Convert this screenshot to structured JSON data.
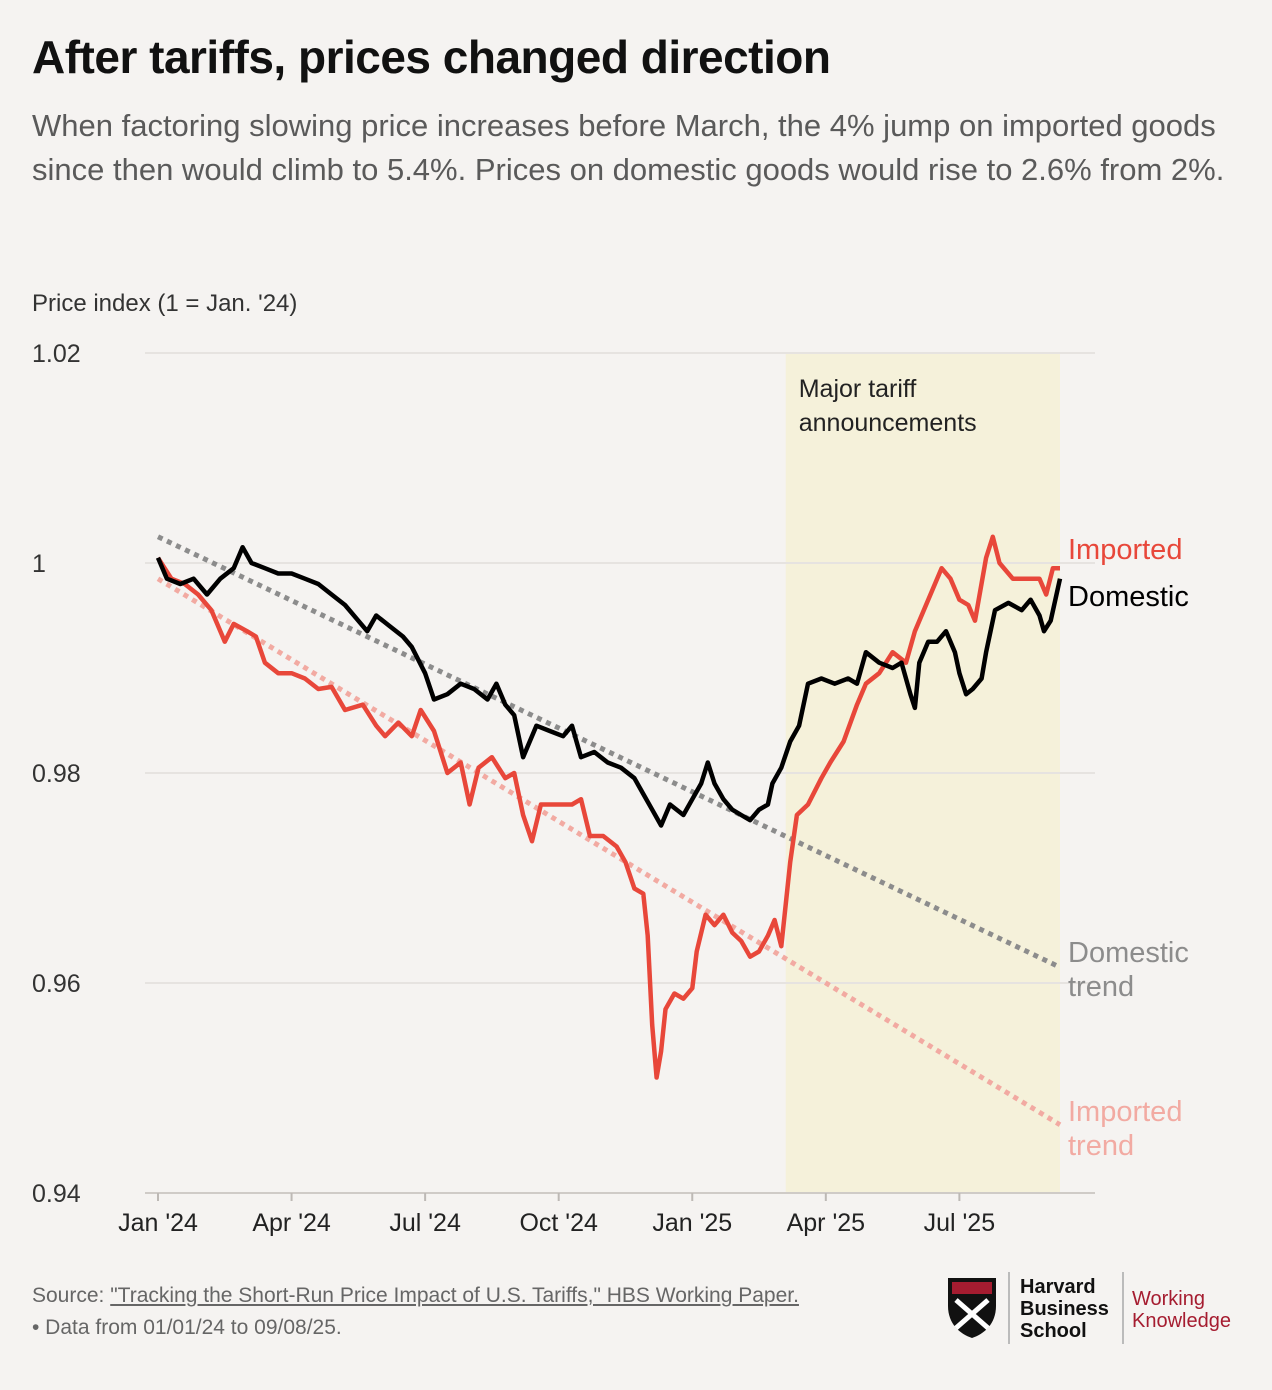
{
  "title": "After tariffs, prices changed direction",
  "subtitle": "When factoring slowing price increases before March, the 4% jump on imported goods since then would climb to 5.4%. Prices on domestic goods would rise to 2.6% from 2%.",
  "axis_caption": "Price index (1 = Jan. '24)",
  "footer": {
    "source_prefix": "Source: ",
    "source_link": "\"Tracking the Short-Run Price Impact of U.S. Tariffs,\" HBS Working Paper.",
    "note": "• Data from 01/01/24 to 09/08/25."
  },
  "logo": {
    "hbs_lines": [
      "Harvard",
      "Business",
      "School"
    ],
    "wk_lines": [
      "Working",
      "Knowledge"
    ]
  },
  "colors": {
    "imported": "#e8473a",
    "domestic": "#000000",
    "imported_trend": "#f2aaa2",
    "domestic_trend": "#8c8c8c",
    "shade": "#f5f1da",
    "background": "#f5f3f1"
  },
  "chart_data": {
    "type": "line",
    "ylim": [
      0.94,
      1.02
    ],
    "yticks": [
      1.02,
      1,
      0.98,
      0.96,
      0.94
    ],
    "ytick_labels": [
      "1.02",
      "1",
      "0.98",
      "0.96",
      "0.94"
    ],
    "xlim": [
      0,
      20.26
    ],
    "xticks": [
      {
        "x": 0,
        "label": "Jan '24"
      },
      {
        "x": 3,
        "label": "Apr '24"
      },
      {
        "x": 6,
        "label": "Jul '24"
      },
      {
        "x": 9,
        "label": "Oct '24"
      },
      {
        "x": 12,
        "label": "Jan '25"
      },
      {
        "x": 15,
        "label": "Apr '25"
      },
      {
        "x": 18,
        "label": "Jul '25"
      }
    ],
    "x_unit": "months since Jan 1, 2024",
    "shaded_region": {
      "x_start": 14.1,
      "x_end": 20.26,
      "label_lines": [
        "Major tariff",
        "announcements"
      ]
    },
    "series": [
      {
        "name": "Imported",
        "label": "Imported",
        "points": [
          [
            0,
            1.0005
          ],
          [
            0.3,
            0.9985
          ],
          [
            0.6,
            0.998
          ],
          [
            0.9,
            0.997
          ],
          [
            1.2,
            0.9955
          ],
          [
            1.5,
            0.9925
          ],
          [
            1.7,
            0.9942
          ],
          [
            2,
            0.9935
          ],
          [
            2.2,
            0.993
          ],
          [
            2.4,
            0.9905
          ],
          [
            2.7,
            0.9895
          ],
          [
            3,
            0.9895
          ],
          [
            3.3,
            0.989
          ],
          [
            3.6,
            0.988
          ],
          [
            3.9,
            0.9882
          ],
          [
            4.2,
            0.986
          ],
          [
            4.6,
            0.9865
          ],
          [
            4.9,
            0.9845
          ],
          [
            5.1,
            0.9835
          ],
          [
            5.4,
            0.9848
          ],
          [
            5.7,
            0.9835
          ],
          [
            5.9,
            0.986
          ],
          [
            6.2,
            0.984
          ],
          [
            6.5,
            0.98
          ],
          [
            6.8,
            0.981
          ],
          [
            7,
            0.977
          ],
          [
            7.2,
            0.9805
          ],
          [
            7.5,
            0.9815
          ],
          [
            7.8,
            0.9795
          ],
          [
            8,
            0.98
          ],
          [
            8.2,
            0.976
          ],
          [
            8.4,
            0.9735
          ],
          [
            8.6,
            0.977
          ],
          [
            9,
            0.977
          ],
          [
            9.3,
            0.977
          ],
          [
            9.5,
            0.9775
          ],
          [
            9.7,
            0.974
          ],
          [
            10,
            0.974
          ],
          [
            10.3,
            0.973
          ],
          [
            10.5,
            0.9715
          ],
          [
            10.7,
            0.969
          ],
          [
            10.9,
            0.9685
          ],
          [
            11,
            0.9645
          ],
          [
            11.1,
            0.956
          ],
          [
            11.2,
            0.951
          ],
          [
            11.3,
            0.9535
          ],
          [
            11.4,
            0.9575
          ],
          [
            11.6,
            0.959
          ],
          [
            11.8,
            0.9585
          ],
          [
            12,
            0.9595
          ],
          [
            12.1,
            0.963
          ],
          [
            12.3,
            0.9665
          ],
          [
            12.5,
            0.9655
          ],
          [
            12.7,
            0.9665
          ],
          [
            12.9,
            0.9648
          ],
          [
            13.1,
            0.964
          ],
          [
            13.3,
            0.9625
          ],
          [
            13.5,
            0.963
          ],
          [
            13.7,
            0.9645
          ],
          [
            13.85,
            0.966
          ],
          [
            14,
            0.9635
          ],
          [
            14.2,
            0.9715
          ],
          [
            14.35,
            0.976
          ],
          [
            14.6,
            0.977
          ],
          [
            14.9,
            0.9795
          ],
          [
            15.1,
            0.981
          ],
          [
            15.4,
            0.983
          ],
          [
            15.7,
            0.9865
          ],
          [
            15.9,
            0.9885
          ],
          [
            16.2,
            0.9895
          ],
          [
            16.5,
            0.9915
          ],
          [
            16.8,
            0.9905
          ],
          [
            17,
            0.9935
          ],
          [
            17.2,
            0.9955
          ],
          [
            17.4,
            0.9975
          ],
          [
            17.6,
            0.9995
          ],
          [
            17.8,
            0.9985
          ],
          [
            18,
            0.9965
          ],
          [
            18.2,
            0.996
          ],
          [
            18.35,
            0.9945
          ],
          [
            18.6,
            1.0005
          ],
          [
            18.75,
            1.0025
          ],
          [
            18.9,
            1.0
          ],
          [
            19.2,
            0.9985
          ],
          [
            19.5,
            0.9985
          ],
          [
            19.8,
            0.9985
          ],
          [
            19.95,
            0.997
          ],
          [
            20.1,
            0.9995
          ],
          [
            20.26,
            0.9995
          ]
        ]
      },
      {
        "name": "Domestic",
        "label": "Domestic",
        "points": [
          [
            0,
            1.0005
          ],
          [
            0.2,
            0.9985
          ],
          [
            0.5,
            0.998
          ],
          [
            0.8,
            0.9985
          ],
          [
            1.1,
            0.997
          ],
          [
            1.4,
            0.9985
          ],
          [
            1.7,
            0.9995
          ],
          [
            1.9,
            1.0015
          ],
          [
            2.1,
            1.0
          ],
          [
            2.4,
            0.9995
          ],
          [
            2.7,
            0.999
          ],
          [
            3,
            0.999
          ],
          [
            3.3,
            0.9985
          ],
          [
            3.6,
            0.998
          ],
          [
            3.9,
            0.997
          ],
          [
            4.2,
            0.996
          ],
          [
            4.5,
            0.9945
          ],
          [
            4.7,
            0.9935
          ],
          [
            4.9,
            0.995
          ],
          [
            5.2,
            0.994
          ],
          [
            5.5,
            0.993
          ],
          [
            5.7,
            0.992
          ],
          [
            6,
            0.9895
          ],
          [
            6.2,
            0.987
          ],
          [
            6.5,
            0.9875
          ],
          [
            6.8,
            0.9885
          ],
          [
            7.1,
            0.988
          ],
          [
            7.4,
            0.987
          ],
          [
            7.6,
            0.9885
          ],
          [
            7.8,
            0.9865
          ],
          [
            8,
            0.9855
          ],
          [
            8.2,
            0.9815
          ],
          [
            8.5,
            0.9845
          ],
          [
            8.8,
            0.984
          ],
          [
            9.1,
            0.9835
          ],
          [
            9.3,
            0.9845
          ],
          [
            9.5,
            0.9815
          ],
          [
            9.8,
            0.982
          ],
          [
            10.1,
            0.981
          ],
          [
            10.4,
            0.9805
          ],
          [
            10.7,
            0.9795
          ],
          [
            10.9,
            0.978
          ],
          [
            11.1,
            0.9765
          ],
          [
            11.3,
            0.975
          ],
          [
            11.5,
            0.977
          ],
          [
            11.8,
            0.976
          ],
          [
            12,
            0.9775
          ],
          [
            12.2,
            0.979
          ],
          [
            12.35,
            0.981
          ],
          [
            12.5,
            0.979
          ],
          [
            12.7,
            0.9775
          ],
          [
            12.9,
            0.9765
          ],
          [
            13.1,
            0.976
          ],
          [
            13.3,
            0.9755
          ],
          [
            13.5,
            0.9765
          ],
          [
            13.7,
            0.977
          ],
          [
            13.8,
            0.979
          ],
          [
            14,
            0.9805
          ],
          [
            14.2,
            0.983
          ],
          [
            14.4,
            0.9845
          ],
          [
            14.6,
            0.9885
          ],
          [
            14.9,
            0.989
          ],
          [
            15.2,
            0.9885
          ],
          [
            15.5,
            0.989
          ],
          [
            15.7,
            0.9885
          ],
          [
            15.9,
            0.9915
          ],
          [
            16.2,
            0.9905
          ],
          [
            16.5,
            0.99
          ],
          [
            16.7,
            0.9905
          ],
          [
            16.9,
            0.9875
          ],
          [
            17,
            0.9862
          ],
          [
            17.1,
            0.9905
          ],
          [
            17.3,
            0.9925
          ],
          [
            17.5,
            0.9925
          ],
          [
            17.7,
            0.9935
          ],
          [
            17.9,
            0.9915
          ],
          [
            18,
            0.9895
          ],
          [
            18.15,
            0.9875
          ],
          [
            18.3,
            0.988
          ],
          [
            18.5,
            0.989
          ],
          [
            18.6,
            0.9915
          ],
          [
            18.8,
            0.9955
          ],
          [
            19.1,
            0.9962
          ],
          [
            19.4,
            0.9955
          ],
          [
            19.6,
            0.9965
          ],
          [
            19.8,
            0.995
          ],
          [
            19.9,
            0.9935
          ],
          [
            20.05,
            0.9945
          ],
          [
            20.26,
            0.9985
          ]
        ]
      }
    ],
    "trends": [
      {
        "name": "Domestic trend",
        "label_lines": [
          "Domestic",
          "trend"
        ],
        "start": [
          0,
          1.0025
        ],
        "end": [
          20.26,
          0.9615
        ]
      },
      {
        "name": "Imported trend",
        "label_lines": [
          "Imported",
          "trend"
        ],
        "start": [
          0,
          0.9985
        ],
        "end": [
          20.26,
          0.9465
        ]
      }
    ]
  }
}
